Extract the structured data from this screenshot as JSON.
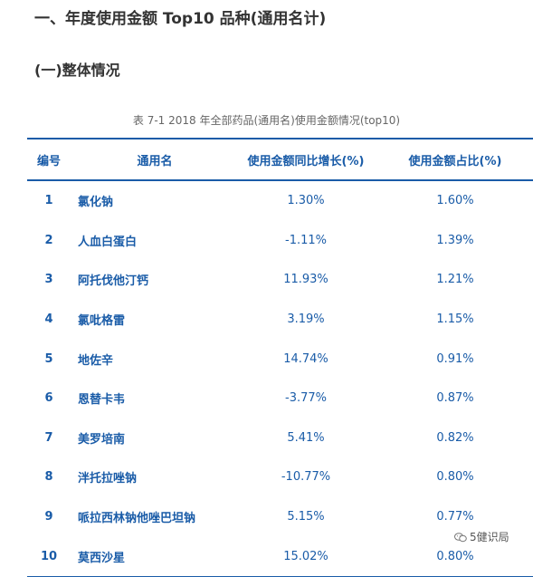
{
  "heading1": "一、年度使用金额 Top10 品种(通用名计)",
  "heading2": "(一)整体情况",
  "table_caption": "表 7-1    2018 年全部药品(通用名)使用金额情况(top10)",
  "table": {
    "headers": [
      "编号",
      "通用名",
      "使用金额同比增长(%)",
      "使用金额占比(%)"
    ],
    "rows": [
      {
        "num": "1",
        "name": "氯化钠",
        "growth": "1.30%",
        "share": "1.60%"
      },
      {
        "num": "2",
        "name": "人血白蛋白",
        "growth": "-1.11%",
        "share": "1.39%"
      },
      {
        "num": "3",
        "name": "阿托伐他汀钙",
        "growth": "11.93%",
        "share": "1.21%"
      },
      {
        "num": "4",
        "name": "氯吡格雷",
        "growth": "3.19%",
        "share": "1.15%"
      },
      {
        "num": "5",
        "name": "地佐辛",
        "growth": "14.74%",
        "share": "0.91%"
      },
      {
        "num": "6",
        "name": "恩替卡韦",
        "growth": "-3.77%",
        "share": "0.87%"
      },
      {
        "num": "7",
        "name": "美罗培南",
        "growth": "5.41%",
        "share": "0.82%"
      },
      {
        "num": "8",
        "name": "泮托拉唑钠",
        "growth": "-10.77%",
        "share": "0.80%"
      },
      {
        "num": "9",
        "name": "哌拉西林钠他唑巴坦钠",
        "growth": "5.15%",
        "share": "0.77%"
      },
      {
        "num": "10",
        "name": "莫西沙星",
        "growth": "15.02%",
        "share": "0.80%"
      }
    ]
  },
  "watermark": {
    "text": "5健识局",
    "icon": "wechat-icon"
  },
  "colors": {
    "accent": "#1a5ca8",
    "text": "#333333",
    "caption": "#666666"
  }
}
